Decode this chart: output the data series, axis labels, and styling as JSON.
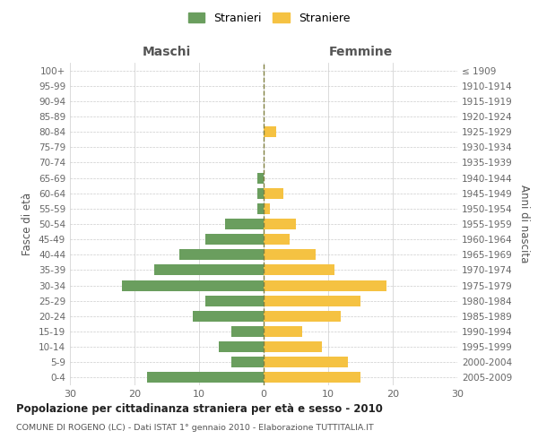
{
  "age_groups": [
    "0-4",
    "5-9",
    "10-14",
    "15-19",
    "20-24",
    "25-29",
    "30-34",
    "35-39",
    "40-44",
    "45-49",
    "50-54",
    "55-59",
    "60-64",
    "65-69",
    "70-74",
    "75-79",
    "80-84",
    "85-89",
    "90-94",
    "95-99",
    "100+"
  ],
  "birth_years": [
    "2005-2009",
    "2000-2004",
    "1995-1999",
    "1990-1994",
    "1985-1989",
    "1980-1984",
    "1975-1979",
    "1970-1974",
    "1965-1969",
    "1960-1964",
    "1955-1959",
    "1950-1954",
    "1945-1949",
    "1940-1944",
    "1935-1939",
    "1930-1934",
    "1925-1929",
    "1920-1924",
    "1915-1919",
    "1910-1914",
    "≤ 1909"
  ],
  "males": [
    18,
    5,
    7,
    5,
    11,
    9,
    22,
    17,
    13,
    9,
    6,
    1,
    1,
    1,
    0,
    0,
    0,
    0,
    0,
    0,
    0
  ],
  "females": [
    15,
    13,
    9,
    6,
    12,
    15,
    19,
    11,
    8,
    4,
    5,
    1,
    3,
    0,
    0,
    0,
    2,
    0,
    0,
    0,
    0
  ],
  "male_color": "#6a9e5e",
  "female_color": "#f5c242",
  "dashed_line_color": "#808040",
  "title": "Popolazione per cittadinanza straniera per età e sesso - 2010",
  "subtitle": "COMUNE DI ROGENO (LC) - Dati ISTAT 1° gennaio 2010 - Elaborazione TUTTITALIA.IT",
  "xlabel_left": "Maschi",
  "xlabel_right": "Femmine",
  "ylabel_left": "Fasce di età",
  "ylabel_right": "Anni di nascita",
  "legend_male": "Stranieri",
  "legend_female": "Straniere",
  "xlim": 30,
  "bg_color": "#ffffff",
  "grid_color": "#cccccc"
}
